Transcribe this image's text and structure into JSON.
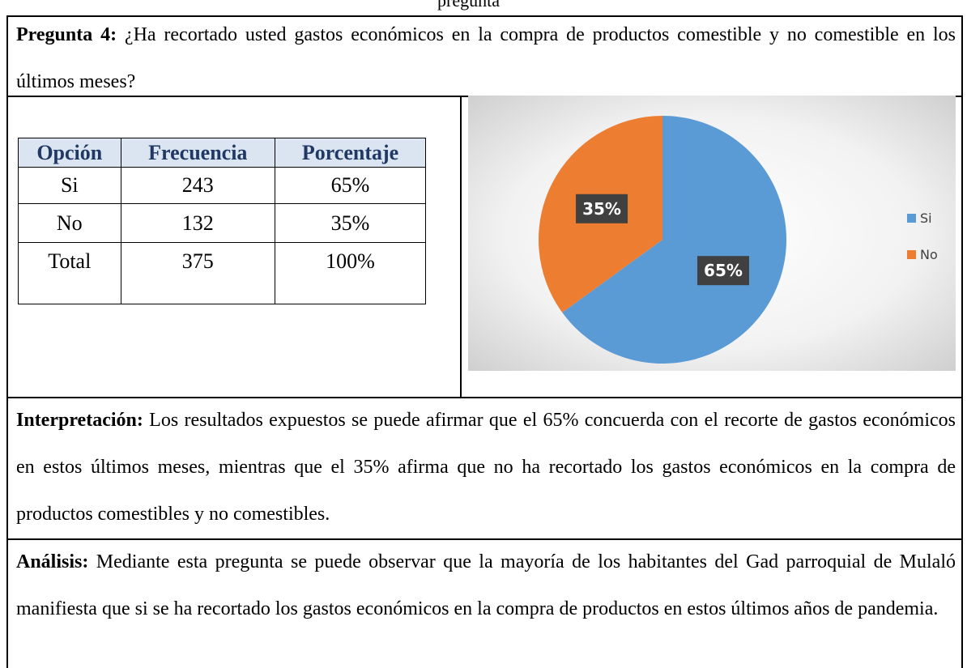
{
  "caption": "pregunta",
  "question": {
    "label": "Pregunta 4:",
    "text": "¿Ha recortado usted gastos económicos en la compra de productos comestible y no comestible en los últimos meses?"
  },
  "table": {
    "header": [
      "Opción",
      "Frecuencia",
      "Porcentaje"
    ],
    "rows": [
      [
        "Si",
        "243",
        "65%"
      ],
      [
        "No",
        "132",
        "35%"
      ],
      [
        "Total",
        "375",
        "100%"
      ]
    ]
  },
  "chart_data": {
    "type": "pie",
    "categories": [
      "Si",
      "No"
    ],
    "values": [
      65,
      35
    ],
    "value_labels": [
      "65%",
      "35%"
    ],
    "colors": [
      "#5b9bd5",
      "#ed7d31"
    ],
    "legend": "right"
  },
  "interpretation": {
    "label": "Interpretación:",
    "text": "Los resultados expuestos se puede afirmar que el 65% concuerda con el recorte de gastos económicos en estos últimos meses, mientras que el 35% afirma que no ha recortado los gastos económicos en la compra de productos comestibles y no comestibles."
  },
  "analysis": {
    "label": "Análisis:",
    "text": "Mediante esta pregunta se puede observar que la mayoría de los habitantes del Gad parroquial de Mulaló manifiesta que si se ha recortado los gastos económicos en la compra de productos en estos últimos años de pandemia."
  }
}
